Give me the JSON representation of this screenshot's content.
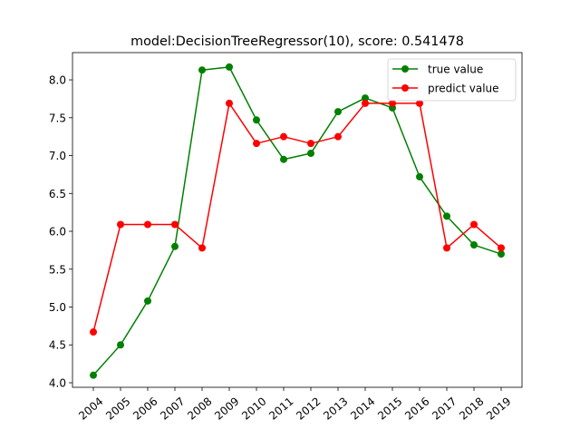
{
  "chart_data": {
    "type": "line",
    "title": "model:DecisionTreeRegressor(10), score: 0.541478",
    "xlabel": "",
    "ylabel": "",
    "categories": [
      "2004",
      "2005",
      "2006",
      "2007",
      "2008",
      "2009",
      "2010",
      "2011",
      "2012",
      "2013",
      "2014",
      "2015",
      "2016",
      "2017",
      "2018",
      "2019"
    ],
    "yticks": [
      "4.0",
      "4.5",
      "5.0",
      "5.5",
      "6.0",
      "6.5",
      "7.0",
      "7.5",
      "8.0"
    ],
    "ylim": [
      3.94,
      8.36
    ],
    "grid": false,
    "legend_position": "top-right",
    "x_tick_rotation_deg": 40,
    "series": [
      {
        "name": "true value",
        "color": "#008000",
        "marker": "circle",
        "values": [
          4.1,
          4.5,
          5.08,
          5.8,
          8.13,
          8.17,
          7.47,
          6.95,
          7.03,
          7.58,
          7.76,
          7.63,
          6.72,
          6.2,
          5.82,
          5.7
        ]
      },
      {
        "name": "predict value",
        "color": "#ff0000",
        "marker": "circle",
        "values": [
          4.67,
          6.09,
          6.09,
          6.09,
          5.78,
          7.69,
          7.16,
          7.25,
          7.16,
          7.25,
          7.69,
          7.69,
          7.69,
          5.78,
          6.09,
          5.78
        ]
      }
    ]
  }
}
